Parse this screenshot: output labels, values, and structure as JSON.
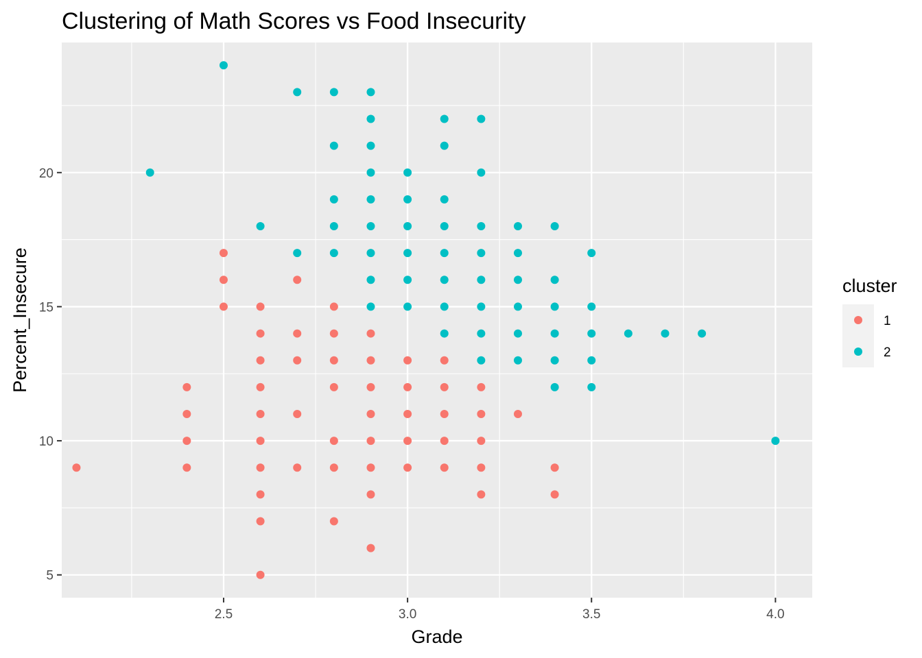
{
  "chart_data": {
    "type": "scatter",
    "title": "Clustering of Math Scores vs Food Insecurity",
    "xlabel": "Grade",
    "ylabel": "Percent_Insecure",
    "xlim": [
      2.06,
      4.1
    ],
    "ylim": [
      4.15,
      24.85
    ],
    "xticks": [
      2.5,
      3.0,
      3.5,
      4.0
    ],
    "xtick_labels": [
      "2.5",
      "3.0",
      "3.5",
      "4.0"
    ],
    "yticks": [
      5,
      10,
      15,
      20
    ],
    "ytick_labels": [
      "5",
      "10",
      "15",
      "20"
    ],
    "grid": true,
    "legend": {
      "title": "cluster",
      "position": "right",
      "entries": [
        {
          "label": "1",
          "color": "#F8766D"
        },
        {
          "label": "2",
          "color": "#00BFC4"
        }
      ]
    },
    "series": [
      {
        "name": "1",
        "color": "#F8766D",
        "points": [
          [
            2.1,
            9
          ],
          [
            2.4,
            12
          ],
          [
            2.4,
            11
          ],
          [
            2.4,
            10
          ],
          [
            2.4,
            9
          ],
          [
            2.5,
            17
          ],
          [
            2.5,
            16
          ],
          [
            2.5,
            15
          ],
          [
            2.6,
            15
          ],
          [
            2.6,
            14
          ],
          [
            2.6,
            13
          ],
          [
            2.6,
            12
          ],
          [
            2.6,
            11
          ],
          [
            2.6,
            10
          ],
          [
            2.6,
            9
          ],
          [
            2.6,
            8
          ],
          [
            2.6,
            7
          ],
          [
            2.6,
            5
          ],
          [
            2.7,
            16
          ],
          [
            2.7,
            14
          ],
          [
            2.7,
            13
          ],
          [
            2.7,
            11
          ],
          [
            2.7,
            9
          ],
          [
            2.8,
            15
          ],
          [
            2.8,
            14
          ],
          [
            2.8,
            13
          ],
          [
            2.8,
            12
          ],
          [
            2.8,
            10
          ],
          [
            2.8,
            9
          ],
          [
            2.8,
            7
          ],
          [
            2.9,
            14
          ],
          [
            2.9,
            13
          ],
          [
            2.9,
            12
          ],
          [
            2.9,
            11
          ],
          [
            2.9,
            10
          ],
          [
            2.9,
            9
          ],
          [
            2.9,
            8
          ],
          [
            2.9,
            6
          ],
          [
            3.0,
            13
          ],
          [
            3.0,
            12
          ],
          [
            3.0,
            11
          ],
          [
            3.0,
            10
          ],
          [
            3.0,
            9
          ],
          [
            3.1,
            13
          ],
          [
            3.1,
            12
          ],
          [
            3.1,
            11
          ],
          [
            3.1,
            10
          ],
          [
            3.1,
            9
          ],
          [
            3.2,
            12
          ],
          [
            3.2,
            11
          ],
          [
            3.2,
            10
          ],
          [
            3.2,
            9
          ],
          [
            3.2,
            8
          ],
          [
            3.3,
            11
          ],
          [
            3.4,
            9
          ],
          [
            3.4,
            8
          ]
        ]
      },
      {
        "name": "2",
        "color": "#00BFC4",
        "points": [
          [
            2.3,
            20
          ],
          [
            2.5,
            24
          ],
          [
            2.6,
            18
          ],
          [
            2.7,
            23
          ],
          [
            2.7,
            17
          ],
          [
            2.8,
            23
          ],
          [
            2.8,
            21
          ],
          [
            2.8,
            19
          ],
          [
            2.8,
            18
          ],
          [
            2.8,
            17
          ],
          [
            2.9,
            23
          ],
          [
            2.9,
            22
          ],
          [
            2.9,
            21
          ],
          [
            2.9,
            20
          ],
          [
            2.9,
            19
          ],
          [
            2.9,
            18
          ],
          [
            2.9,
            17
          ],
          [
            2.9,
            16
          ],
          [
            2.9,
            15
          ],
          [
            3.0,
            20
          ],
          [
            3.0,
            19
          ],
          [
            3.0,
            18
          ],
          [
            3.0,
            17
          ],
          [
            3.0,
            16
          ],
          [
            3.0,
            15
          ],
          [
            3.1,
            22
          ],
          [
            3.1,
            21
          ],
          [
            3.1,
            19
          ],
          [
            3.1,
            18
          ],
          [
            3.1,
            17
          ],
          [
            3.1,
            16
          ],
          [
            3.1,
            15
          ],
          [
            3.1,
            14
          ],
          [
            3.2,
            22
          ],
          [
            3.2,
            20
          ],
          [
            3.2,
            18
          ],
          [
            3.2,
            17
          ],
          [
            3.2,
            16
          ],
          [
            3.2,
            15
          ],
          [
            3.2,
            14
          ],
          [
            3.2,
            13
          ],
          [
            3.3,
            18
          ],
          [
            3.3,
            17
          ],
          [
            3.3,
            16
          ],
          [
            3.3,
            15
          ],
          [
            3.3,
            14
          ],
          [
            3.3,
            13
          ],
          [
            3.4,
            18
          ],
          [
            3.4,
            16
          ],
          [
            3.4,
            15
          ],
          [
            3.4,
            14
          ],
          [
            3.4,
            13
          ],
          [
            3.4,
            12
          ],
          [
            3.5,
            17
          ],
          [
            3.5,
            15
          ],
          [
            3.5,
            14
          ],
          [
            3.5,
            13
          ],
          [
            3.5,
            12
          ],
          [
            3.6,
            14
          ],
          [
            3.7,
            14
          ],
          [
            3.8,
            14
          ],
          [
            4.0,
            10
          ]
        ]
      }
    ]
  }
}
